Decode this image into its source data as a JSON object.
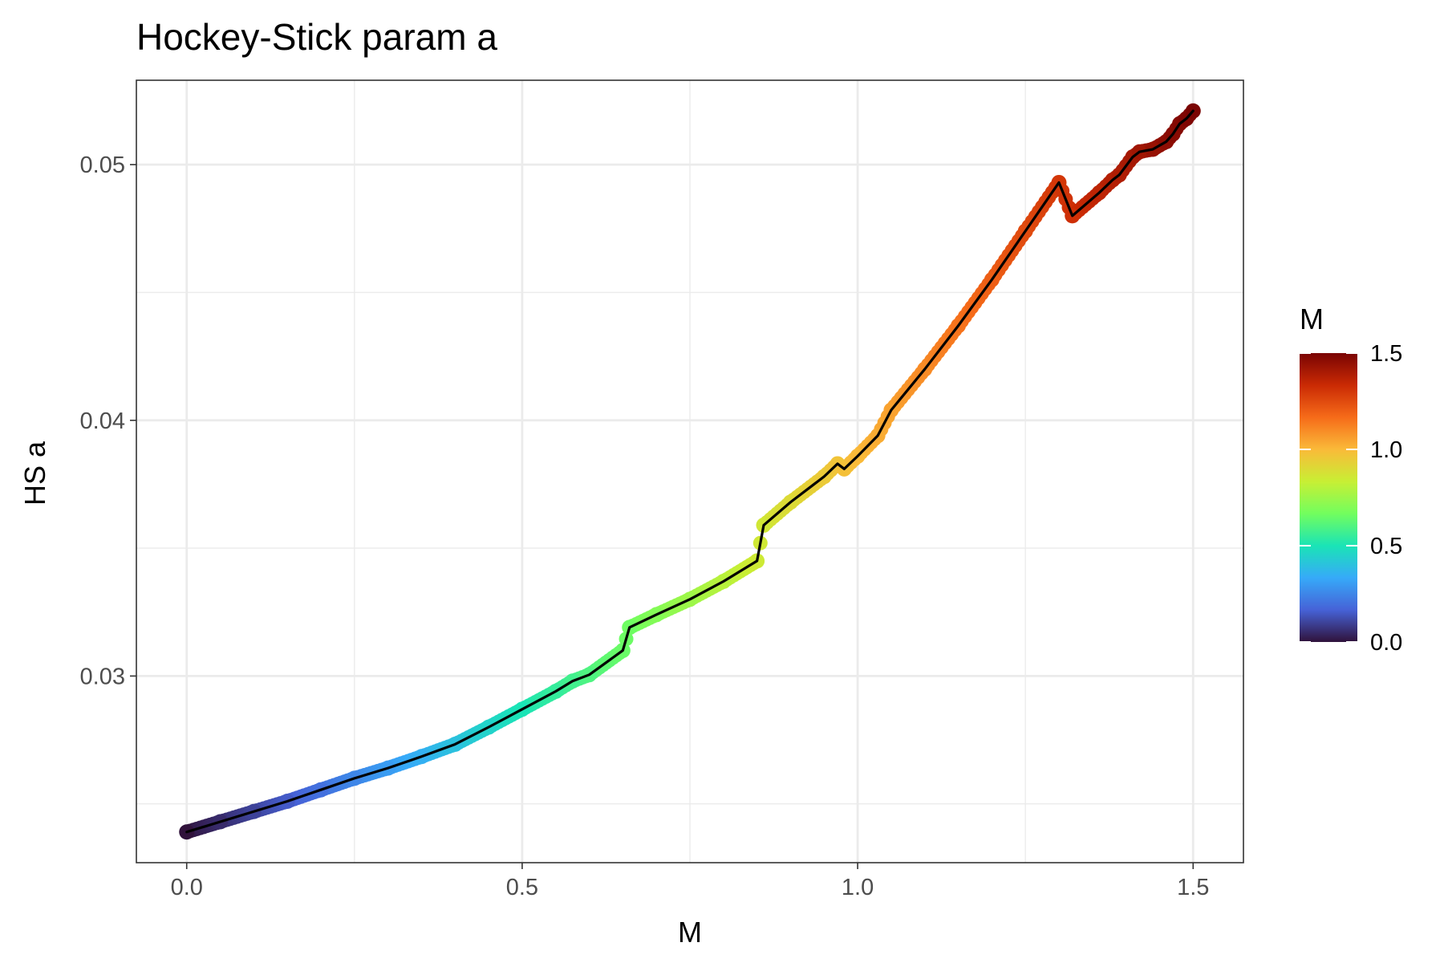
{
  "chart_data": {
    "type": "line",
    "title": "Hockey-Stick param a",
    "xlabel": "M",
    "ylabel": "HS a",
    "xlim": [
      -0.075,
      1.575
    ],
    "ylim": [
      0.0227,
      0.0533
    ],
    "x_ticks": [
      0.0,
      0.5,
      1.0,
      1.5
    ],
    "x_tick_labels": [
      "0.0",
      "0.5",
      "1.0",
      "1.5"
    ],
    "y_ticks": [
      0.03,
      0.04,
      0.05
    ],
    "y_tick_labels": [
      "0.03",
      "0.04",
      "0.05"
    ],
    "grid": true,
    "legend": {
      "title": "M",
      "placement": "right",
      "type": "colorbar",
      "range": [
        0.0,
        1.5
      ],
      "ticks": [
        0.0,
        0.5,
        1.0,
        1.5
      ],
      "tick_labels": [
        "0.0",
        "0.5",
        "1.0",
        "1.5"
      ],
      "palette": "turbo",
      "colors": [
        "#30123b",
        "#4662d7",
        "#36aaf9",
        "#1ae4b6",
        "#72fe5e",
        "#c8ef34",
        "#faba39",
        "#f66b19",
        "#ca2a04",
        "#7a0403"
      ]
    },
    "line_color": "#000000",
    "series": [
      {
        "x": [
          0.0,
          0.05,
          0.1,
          0.15,
          0.2,
          0.25,
          0.3,
          0.35,
          0.4,
          0.45,
          0.5,
          0.55,
          0.575,
          0.6,
          0.65,
          0.66,
          0.7,
          0.75,
          0.8,
          0.85,
          0.86,
          0.9,
          0.95,
          0.97,
          0.98,
          1.0,
          1.03,
          1.05,
          1.1,
          1.15,
          1.2,
          1.25,
          1.3,
          1.32,
          1.36,
          1.38,
          1.39,
          1.41,
          1.42,
          1.44,
          1.46,
          1.47,
          1.48,
          1.49,
          1.5
        ],
        "y": [
          0.0239,
          0.0243,
          0.0247,
          0.0251,
          0.02555,
          0.026,
          0.0264,
          0.02685,
          0.02733,
          0.028,
          0.0287,
          0.0294,
          0.0298,
          0.03005,
          0.031,
          0.0319,
          0.0324,
          0.033,
          0.0337,
          0.0345,
          0.0359,
          0.0368,
          0.0378,
          0.0383,
          0.0381,
          0.0386,
          0.0394,
          0.0404,
          0.042,
          0.0437,
          0.0455,
          0.0474,
          0.0493,
          0.048,
          0.0489,
          0.0494,
          0.0496,
          0.0503,
          0.0505,
          0.0506,
          0.0509,
          0.0512,
          0.0516,
          0.0518,
          0.0521
        ]
      }
    ]
  }
}
